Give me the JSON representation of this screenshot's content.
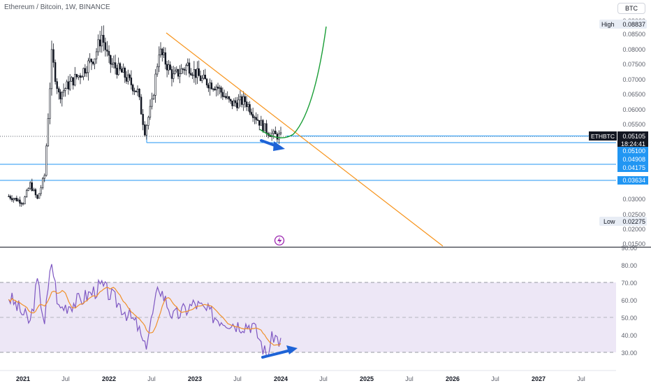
{
  "header": {
    "symbol_title": "Ethereum / Bitcoin, 1W, BINANCE",
    "currency_button": "BTC"
  },
  "price_axis": {
    "ticks": [
      "0.09000",
      "0.08500",
      "0.08000",
      "0.07500",
      "0.07000",
      "0.06500",
      "0.06000",
      "0.05500",
      "0.03000",
      "0.02500",
      "0.02000",
      "0.01500"
    ],
    "high_label": "High",
    "high_value": "0.08837",
    "low_label": "Low",
    "low_value": "0.02275",
    "ticker_label": "ETHBTC",
    "ticker_price": "0.05105",
    "countdown": "18:24:41",
    "level_labels": [
      "0.05100",
      "0.04908",
      "0.04175",
      "0.03634"
    ]
  },
  "rsi_axis": {
    "ticks": [
      "90.00",
      "80.00",
      "70.00",
      "60.00",
      "50.00",
      "40.00",
      "30.00"
    ]
  },
  "time_axis": {
    "labels": [
      "2021",
      "Jul",
      "2022",
      "Jul",
      "2023",
      "Jul",
      "2024",
      "Jul",
      "2025",
      "Jul",
      "2026",
      "Jul",
      "2027",
      "Jul"
    ]
  },
  "colors": {
    "up_candle": "#131722",
    "down_candle": "#131722",
    "trendline": "#f7931a",
    "projection_curve": "#1a9e37",
    "level_line": "#2196f3",
    "arrow": "#1e63d6",
    "rsi_line": "#7e57c2",
    "rsi_ma": "#f0902a",
    "rsi_band": "#ede7f6"
  },
  "icons": {
    "watermark": "lightning-bolt-icon"
  },
  "chart_data": {
    "type": "candlestick",
    "title": "Ethereum / Bitcoin, 1W, BINANCE",
    "price_range": [
      0.015,
      0.09
    ],
    "price_key_points": [
      {
        "x": "2020-11",
        "y": 0.031
      },
      {
        "x": "2021-01",
        "y": 0.029
      },
      {
        "x": "2021-02",
        "y": 0.035
      },
      {
        "x": "2021-03",
        "y": 0.03
      },
      {
        "x": "2021-04",
        "y": 0.038
      },
      {
        "x": "2021-05",
        "y": 0.078
      },
      {
        "x": "2021-06",
        "y": 0.065
      },
      {
        "x": "2021-08",
        "y": 0.07
      },
      {
        "x": "2021-09",
        "y": 0.072
      },
      {
        "x": "2021-11",
        "y": 0.078
      },
      {
        "x": "2021-12",
        "y": 0.085
      },
      {
        "x": "2022-01",
        "y": 0.076
      },
      {
        "x": "2022-03",
        "y": 0.072
      },
      {
        "x": "2022-05",
        "y": 0.066
      },
      {
        "x": "2022-06",
        "y": 0.053
      },
      {
        "x": "2022-07",
        "y": 0.062
      },
      {
        "x": "2022-08",
        "y": 0.08
      },
      {
        "x": "2022-10",
        "y": 0.071
      },
      {
        "x": "2022-12",
        "y": 0.075
      },
      {
        "x": "2023-02",
        "y": 0.07
      },
      {
        "x": "2023-04",
        "y": 0.068
      },
      {
        "x": "2023-06",
        "y": 0.062
      },
      {
        "x": "2023-08",
        "y": 0.063
      },
      {
        "x": "2023-10",
        "y": 0.056
      },
      {
        "x": "2023-11",
        "y": 0.053
      },
      {
        "x": "2023-12",
        "y": 0.0515
      },
      {
        "x": "2024-01",
        "y": 0.051
      }
    ],
    "horizontal_levels": [
      0.051,
      0.04908,
      0.04175,
      0.03634
    ],
    "rsi_range": [
      25,
      90
    ],
    "rsi_band": [
      30,
      70
    ],
    "rsi_key_points": [
      {
        "x": "2020-11",
        "y": 62
      },
      {
        "x": "2021-02",
        "y": 47
      },
      {
        "x": "2021-03",
        "y": 70
      },
      {
        "x": "2021-04",
        "y": 48
      },
      {
        "x": "2021-05",
        "y": 82
      },
      {
        "x": "2021-06",
        "y": 55
      },
      {
        "x": "2021-09",
        "y": 60
      },
      {
        "x": "2021-12",
        "y": 68
      },
      {
        "x": "2022-03",
        "y": 55
      },
      {
        "x": "2022-05",
        "y": 45
      },
      {
        "x": "2022-06",
        "y": 32
      },
      {
        "x": "2022-08",
        "y": 68
      },
      {
        "x": "2022-10",
        "y": 50
      },
      {
        "x": "2023-01",
        "y": 58
      },
      {
        "x": "2023-04",
        "y": 50
      },
      {
        "x": "2023-07",
        "y": 46
      },
      {
        "x": "2023-09",
        "y": 46
      },
      {
        "x": "2023-10",
        "y": 38
      },
      {
        "x": "2023-11",
        "y": 28
      },
      {
        "x": "2023-12",
        "y": 40
      },
      {
        "x": "2024-01",
        "y": 36
      }
    ]
  }
}
